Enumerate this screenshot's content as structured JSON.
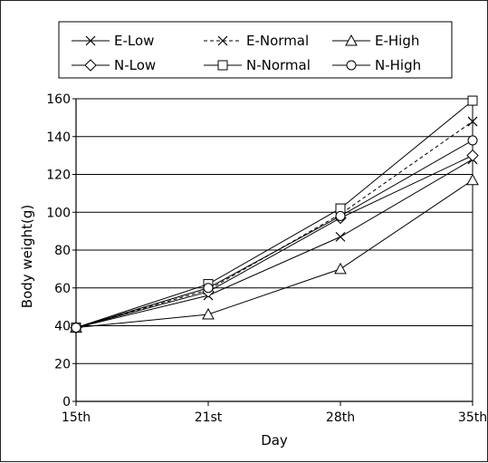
{
  "chart_data": {
    "type": "line",
    "xlabel": "Day",
    "ylabel": "Body weight(g)",
    "categories": [
      "15th",
      "21st",
      "28th",
      "35th"
    ],
    "ylim": [
      0,
      160
    ],
    "yticks": [
      0,
      20,
      40,
      60,
      80,
      100,
      120,
      140,
      160
    ],
    "grid": "horizontal",
    "legend_placement": "top",
    "series": [
      {
        "name": "E-Low",
        "marker": "x",
        "dash": "solid",
        "values": [
          39,
          56,
          87,
          128
        ]
      },
      {
        "name": "E-Normal",
        "marker": "x",
        "dash": "dashed",
        "values": [
          39,
          59,
          99,
          148
        ]
      },
      {
        "name": "E-High",
        "marker": "triangle",
        "dash": "solid",
        "values": [
          39,
          46,
          70,
          117
        ]
      },
      {
        "name": "N-Low",
        "marker": "diamond",
        "dash": "solid",
        "values": [
          39,
          58,
          97,
          130
        ]
      },
      {
        "name": "N-Normal",
        "marker": "square",
        "dash": "solid",
        "values": [
          39,
          62,
          102,
          159
        ]
      },
      {
        "name": "N-High",
        "marker": "circle",
        "dash": "solid",
        "values": [
          39,
          60,
          98,
          138
        ]
      }
    ]
  }
}
